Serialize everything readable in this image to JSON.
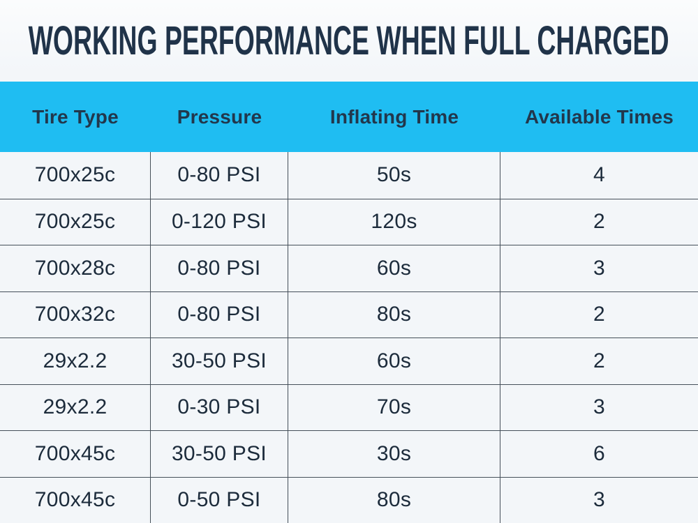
{
  "title": "WORKING PERFORMANCE WHEN FULL CHARGED",
  "chart_data": {
    "type": "table",
    "title": "WORKING PERFORMANCE WHEN FULL CHARGED",
    "columns": [
      "Tire Type",
      "Pressure",
      "Inflating Time",
      "Available Times"
    ],
    "rows": [
      [
        "700x25c",
        "0-80 PSI",
        "50s",
        "4"
      ],
      [
        "700x25c",
        "0-120 PSI",
        "120s",
        "2"
      ],
      [
        "700x28c",
        "0-80 PSI",
        "60s",
        "3"
      ],
      [
        "700x32c",
        "0-80 PSI",
        "80s",
        "2"
      ],
      [
        "29x2.2",
        "30-50 PSI",
        "60s",
        "2"
      ],
      [
        "29x2.2",
        "0-30 PSI",
        "70s",
        "3"
      ],
      [
        "700x45c",
        "30-50 PSI",
        "30s",
        "6"
      ],
      [
        "700x45c",
        "0-50 PSI",
        "80s",
        "3"
      ]
    ]
  },
  "colors": {
    "header_bg": "#1FBDF2",
    "title_text": "#203349",
    "header_text": "#22374C",
    "cell_text": "#1C2B3B",
    "page_bg": "#F3F6F9",
    "grid_line": "#454F59"
  }
}
